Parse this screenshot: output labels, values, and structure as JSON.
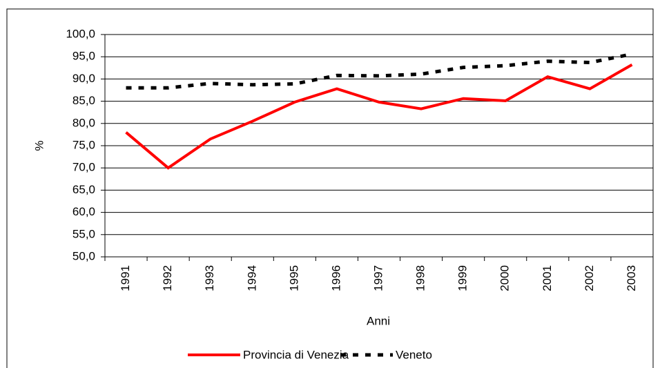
{
  "chart_data": {
    "type": "line",
    "x_label": "Anni",
    "y_label": "%",
    "categories": [
      "1991",
      "1992",
      "1993",
      "1994",
      "1995",
      "1996",
      "1997",
      "1998",
      "1999",
      "2000",
      "2001",
      "2002",
      "2003"
    ],
    "series": [
      {
        "name": "Provincia di Venezia",
        "color": "#ff0000",
        "style": "solid",
        "values": [
          78.0,
          70.0,
          76.5,
          80.5,
          84.8,
          87.8,
          84.8,
          83.3,
          85.6,
          85.1,
          90.5,
          87.8,
          93.2
        ]
      },
      {
        "name": "Veneto",
        "color": "#000000",
        "style": "dashed",
        "values": [
          88.0,
          88.0,
          89.0,
          88.7,
          88.9,
          90.8,
          90.7,
          91.1,
          92.6,
          93.0,
          94.0,
          93.7,
          95.6
        ]
      }
    ],
    "ylim": [
      50,
      100
    ],
    "yticks": [
      {
        "value": 50,
        "label": "50,0"
      },
      {
        "value": 55,
        "label": "55,0"
      },
      {
        "value": 60,
        "label": "60,0"
      },
      {
        "value": 65,
        "label": "65,0"
      },
      {
        "value": 70,
        "label": "70,0"
      },
      {
        "value": 75,
        "label": "75,0"
      },
      {
        "value": 80,
        "label": "80,0"
      },
      {
        "value": 85,
        "label": "85,0"
      },
      {
        "value": 90,
        "label": "90,0"
      },
      {
        "value": 95,
        "label": "95,0"
      },
      {
        "value": 100,
        "label": "100,0"
      }
    ],
    "grid": true,
    "legend": "bottom"
  }
}
